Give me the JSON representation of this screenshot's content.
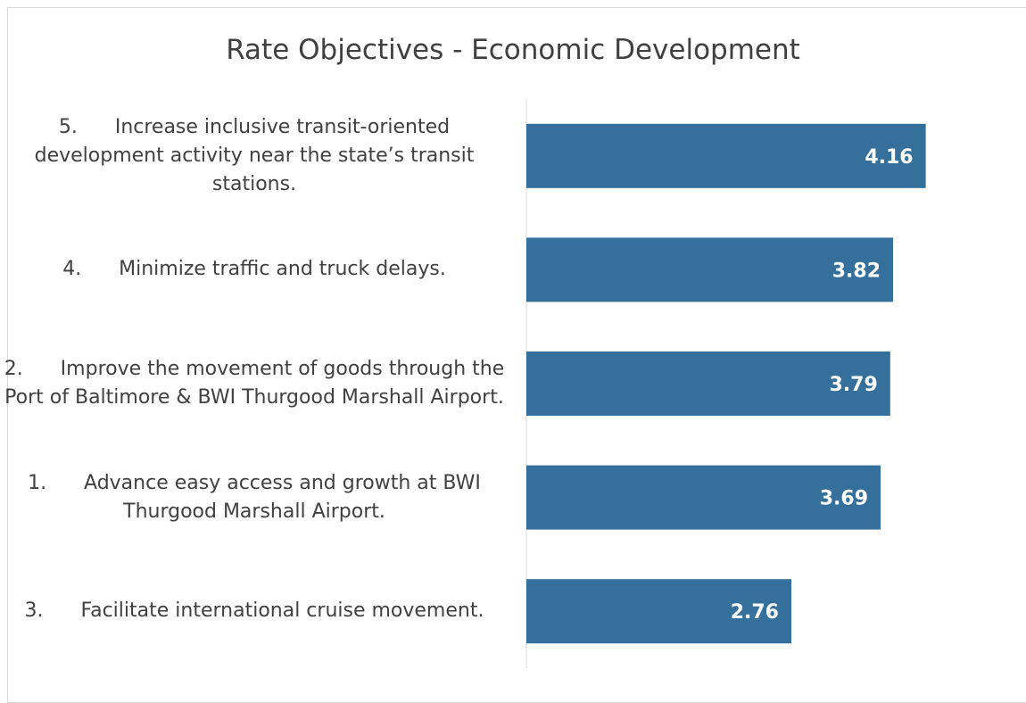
{
  "chart_data": {
    "type": "bar",
    "orientation": "horizontal",
    "title": "Rate Objectives - Economic Development",
    "categories": [
      "5.      Increase inclusive transit-oriented development activity near the state’s transit stations.",
      "4.      Minimize traffic and truck delays.",
      "2.      Improve the movement of goods through the Port of Baltimore & BWI Thurgood Marshall Airport.",
      "1.      Advance easy access and growth at BWI Thurgood Marshall Airport.",
      "3.      Facilitate international cruise movement."
    ],
    "values": [
      4.16,
      3.82,
      3.79,
      3.69,
      2.76
    ],
    "color": "#35709d",
    "xlim": [
      0,
      5
    ]
  }
}
